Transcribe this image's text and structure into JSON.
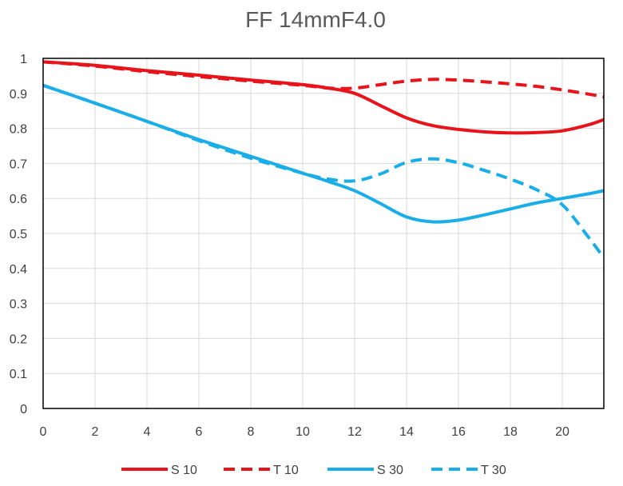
{
  "chart_data": {
    "type": "line",
    "title": "FF 14mmF4.0",
    "xlabel": "",
    "ylabel": "",
    "xlim": [
      0,
      21.6
    ],
    "ylim": [
      0,
      1
    ],
    "grid": true,
    "legend_position": "bottom",
    "x_ticks": [
      "0",
      "2",
      "4",
      "6",
      "8",
      "10",
      "12",
      "14",
      "16",
      "18",
      "20"
    ],
    "x_tick_values": [
      0,
      2,
      4,
      6,
      8,
      10,
      12,
      14,
      16,
      18,
      20
    ],
    "y_ticks": [
      "0",
      "0.1",
      "0.2",
      "0.3",
      "0.4",
      "0.5",
      "0.6",
      "0.7",
      "0.8",
      "0.9",
      "1"
    ],
    "y_tick_values": [
      0,
      0.1,
      0.2,
      0.3,
      0.4,
      0.5,
      0.6,
      0.7,
      0.8,
      0.9,
      1
    ],
    "series": [
      {
        "name": "S 10",
        "color": "#e8141b",
        "dash": "solid",
        "x": [
          0,
          2,
          4,
          6,
          8,
          10,
          11,
          12,
          13,
          14,
          15,
          16,
          17,
          18,
          19,
          20,
          21,
          21.6
        ],
        "y": [
          0.99,
          0.98,
          0.965,
          0.952,
          0.938,
          0.925,
          0.915,
          0.9,
          0.865,
          0.83,
          0.808,
          0.797,
          0.79,
          0.787,
          0.788,
          0.793,
          0.81,
          0.825
        ]
      },
      {
        "name": "T 10",
        "color": "#e8141b",
        "dash": "dashed",
        "x": [
          0,
          2,
          4,
          6,
          8,
          10,
          11,
          12,
          13,
          14,
          15,
          16,
          17,
          18,
          19,
          20,
          21,
          21.6
        ],
        "y": [
          0.99,
          0.978,
          0.962,
          0.948,
          0.935,
          0.923,
          0.915,
          0.915,
          0.925,
          0.935,
          0.94,
          0.938,
          0.933,
          0.927,
          0.92,
          0.91,
          0.898,
          0.89
        ]
      },
      {
        "name": "S 30",
        "color": "#1aaee8",
        "dash": "solid",
        "x": [
          0,
          2,
          4,
          6,
          8,
          10,
          11,
          12,
          13,
          14,
          15,
          16,
          17,
          18,
          19,
          20,
          21,
          21.6
        ],
        "y": [
          0.923,
          0.872,
          0.82,
          0.768,
          0.72,
          0.672,
          0.648,
          0.622,
          0.585,
          0.547,
          0.533,
          0.538,
          0.553,
          0.57,
          0.587,
          0.6,
          0.613,
          0.622
        ]
      },
      {
        "name": "T 30",
        "color": "#1aaee8",
        "dash": "dashed",
        "x": [
          0,
          2,
          4,
          6,
          8,
          10,
          11,
          12,
          13,
          14,
          15,
          16,
          17,
          18,
          19,
          20,
          21,
          21.6
        ],
        "y": [
          0.923,
          0.872,
          0.82,
          0.765,
          0.715,
          0.672,
          0.655,
          0.65,
          0.67,
          0.703,
          0.713,
          0.702,
          0.68,
          0.655,
          0.625,
          0.582,
          0.49,
          0.43
        ]
      }
    ]
  }
}
